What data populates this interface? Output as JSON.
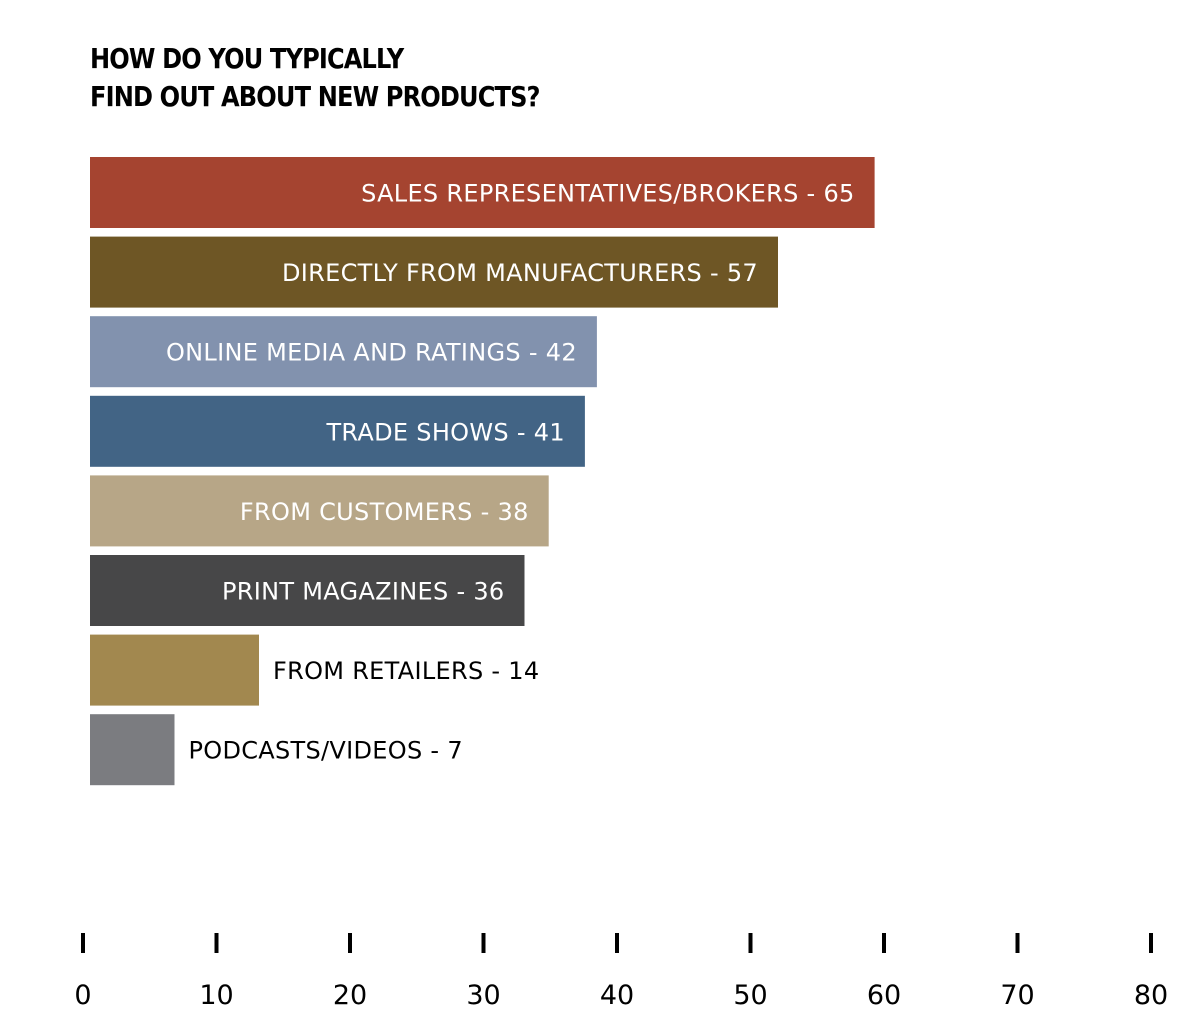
{
  "chart_data": {
    "type": "bar",
    "orientation": "horizontal",
    "title_lines": [
      "HOW DO YOU TYPICALLY",
      "FIND OUT ABOUT NEW PRODUCTS?"
    ],
    "categories": [
      "SALES REPRESENTATIVES/BROKERS - 65",
      "DIRECTLY FROM MANUFACTURERS - 57",
      "ONLINE MEDIA AND RATINGS - 42",
      "TRADE SHOWS - 41",
      "FROM CUSTOMERS - 38",
      "PRINT MAGAZINES - 36",
      "FROM RETAILERS - 14",
      "PODCASTS/VIDEOS - 7"
    ],
    "values": [
      65,
      57,
      42,
      41,
      38,
      36,
      14,
      7
    ],
    "colors": [
      "#a54430",
      "#6e5625",
      "#8292ae",
      "#426485",
      "#b7a687",
      "#474748",
      "#a2884f",
      "#7b7c80"
    ],
    "x_ticks": [
      "0",
      "10",
      "20",
      "30",
      "40",
      "50",
      "60",
      "70",
      "80"
    ],
    "xlim": [
      0,
      80
    ],
    "grid": false,
    "legend": "none"
  }
}
